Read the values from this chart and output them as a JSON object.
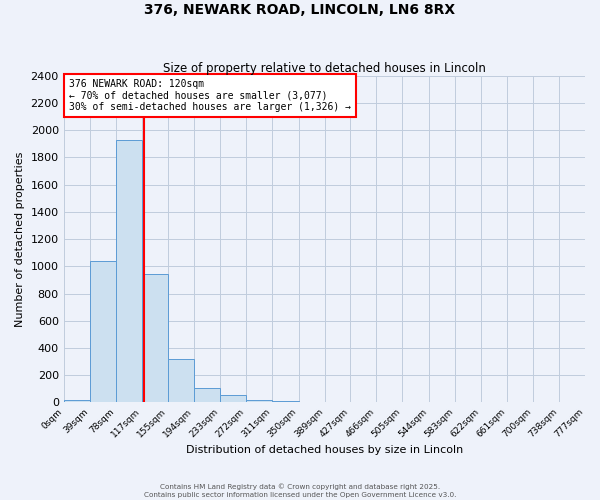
{
  "title": "376, NEWARK ROAD, LINCOLN, LN6 8RX",
  "subtitle": "Size of property relative to detached houses in Lincoln",
  "xlabel": "Distribution of detached houses by size in Lincoln",
  "ylabel": "Number of detached properties",
  "bin_edges": [
    0,
    39,
    78,
    117,
    155,
    194,
    233,
    272,
    311,
    350,
    389,
    427,
    466,
    505,
    544,
    583,
    622,
    661,
    700,
    738,
    777
  ],
  "bar_heights": [
    20,
    1040,
    1930,
    940,
    320,
    105,
    55,
    20,
    10,
    5,
    3,
    2,
    1,
    1,
    1,
    1,
    0,
    0,
    1,
    0
  ],
  "bar_color": "#cce0f0",
  "bar_edgecolor": "#5b9bd5",
  "vline_x": 120,
  "vline_color": "red",
  "annotation_title": "376 NEWARK ROAD: 120sqm",
  "annotation_line1": "← 70% of detached houses are smaller (3,077)",
  "annotation_line2": "30% of semi-detached houses are larger (1,326) →",
  "annotation_box_color": "white",
  "annotation_box_edgecolor": "red",
  "ylim": [
    0,
    2400
  ],
  "yticks": [
    0,
    200,
    400,
    600,
    800,
    1000,
    1200,
    1400,
    1600,
    1800,
    2000,
    2200,
    2400
  ],
  "bg_color": "#eef2fa",
  "grid_color": "#c0ccdd",
  "footer1": "Contains HM Land Registry data © Crown copyright and database right 2025.",
  "footer2": "Contains public sector information licensed under the Open Government Licence v3.0."
}
